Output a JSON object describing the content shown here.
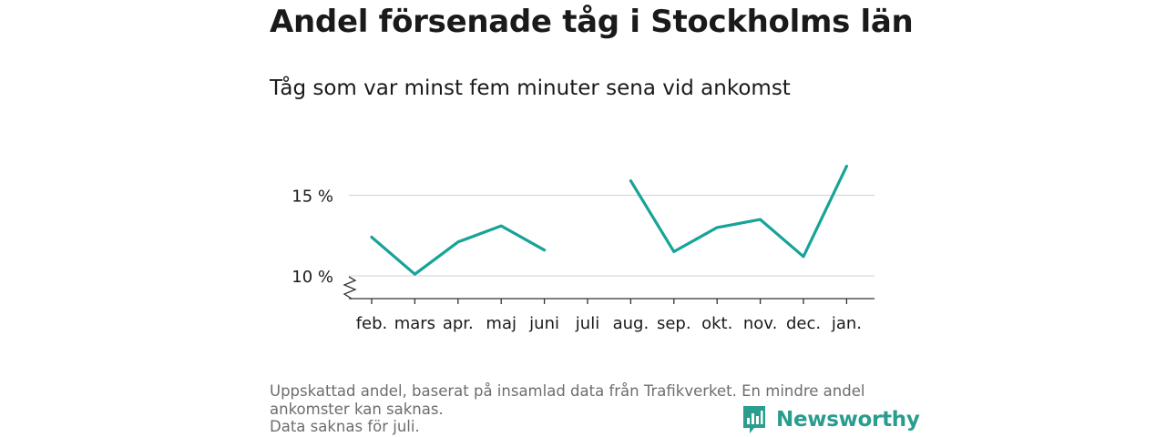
{
  "title": "Andel försenade tåg i Stockholms län",
  "subtitle": "Tåg som var minst fem minuter sena vid ankomst",
  "footnote": {
    "line1": "Uppskattad andel, baserat på insamlad data från Trafikverket. En mindre andel",
    "line2": "ankomster kan saknas.",
    "line3": "Data saknas för juli."
  },
  "brand": {
    "name": "Newsworthy",
    "icon": "newsworthy-logo-icon"
  },
  "colors": {
    "line": "#17a398",
    "grid": "#d9d9d9",
    "axis": "#333333",
    "brand": "#2a9d8f"
  },
  "chart_data": {
    "type": "line",
    "title": "Andel försenade tåg i Stockholms län",
    "subtitle": "Tåg som var minst fem minuter sena vid ankomst",
    "categories": [
      "feb.",
      "mars",
      "apr.",
      "maj",
      "juni",
      "juli",
      "aug.",
      "sep.",
      "okt.",
      "nov.",
      "dec.",
      "jan."
    ],
    "series": [
      {
        "values": [
          12.4,
          10.1,
          12.1,
          13.1,
          11.6,
          null,
          15.9,
          11.5,
          13.0,
          13.5,
          11.2,
          16.8
        ]
      }
    ],
    "yticks": [
      10,
      15
    ],
    "ytick_labels": [
      "10 %",
      "15 %"
    ],
    "ylim": [
      10,
      17
    ],
    "axis_break": true,
    "grid": true,
    "legend": "none"
  }
}
